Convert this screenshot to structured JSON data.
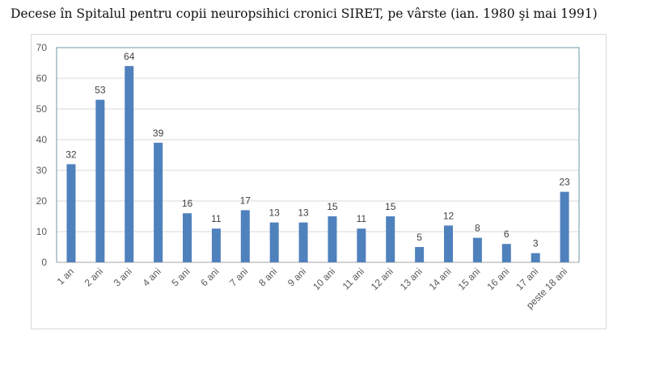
{
  "chart_data": {
    "type": "bar",
    "title": "Decese în Spitalul pentru copii neuropsihici cronici SIRET, pe vârste (ian. 1980 şi mai 1991)",
    "categories": [
      "1 an",
      "2 ani",
      "3 ani",
      "4 ani",
      "5 ani",
      "6 ani",
      "7 ani",
      "8 ani",
      "9 ani",
      "10 ani",
      "11 ani",
      "12 ani",
      "13 ani",
      "14 ani",
      "15 ani",
      "16 ani",
      "17 ani",
      "peste 18 ani"
    ],
    "values": [
      32,
      53,
      64,
      39,
      16,
      11,
      17,
      13,
      13,
      15,
      11,
      15,
      5,
      12,
      8,
      6,
      3,
      23
    ],
    "yticks": [
      0,
      10,
      20,
      30,
      40,
      50,
      60,
      70
    ],
    "ylim": [
      0,
      70
    ],
    "xlabel": "",
    "ylabel": "",
    "grid": true,
    "legend": "none",
    "bar_color": "#4f81bd",
    "grid_color": "#d9d9d9",
    "axis_color": "#6d97a6"
  }
}
